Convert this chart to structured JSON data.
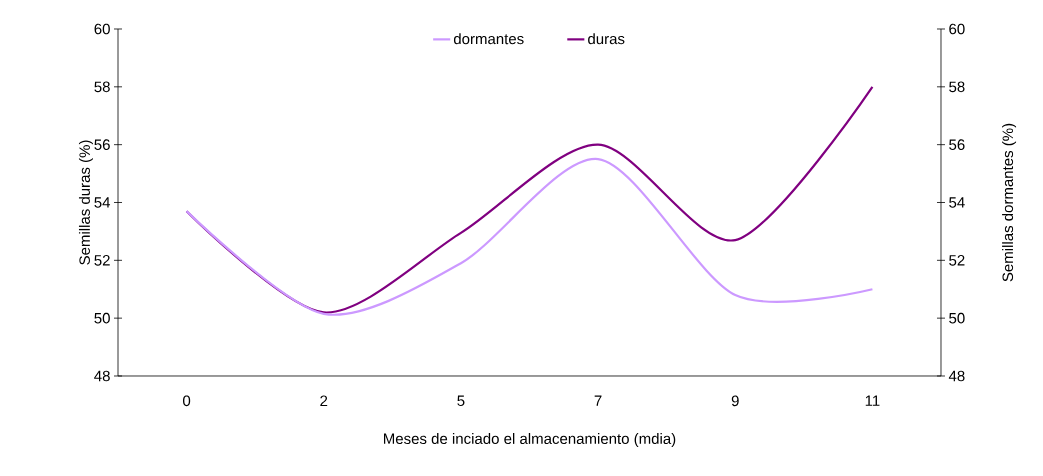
{
  "chart_data": {
    "type": "line",
    "xlabel": "Meses de inciado el almacenamiento (mdia)",
    "ylabel": "Semillas duras (%)",
    "y2label": "Semillas dormantes (%)",
    "categories": [
      "0",
      "2",
      "5",
      "7",
      "9",
      "11"
    ],
    "series": [
      {
        "name": "dormantes",
        "color": "#cc99ff",
        "axis": "y2",
        "values": [
          53.7,
          50.15,
          51.9,
          55.5,
          50.8,
          51.0
        ]
      },
      {
        "name": "duras",
        "color": "#800080",
        "values": [
          53.7,
          50.2,
          52.95,
          56.0,
          52.7,
          58.0
        ]
      }
    ],
    "ylim": [
      48,
      60
    ],
    "yticks": [
      48,
      50,
      52,
      54,
      56,
      58,
      60
    ],
    "y2lim": [
      48,
      60
    ],
    "y2ticks": [
      48,
      50,
      52,
      54,
      56,
      58,
      60
    ],
    "legend": "top",
    "grid": false,
    "marker": "none",
    "line_style": "solid"
  }
}
